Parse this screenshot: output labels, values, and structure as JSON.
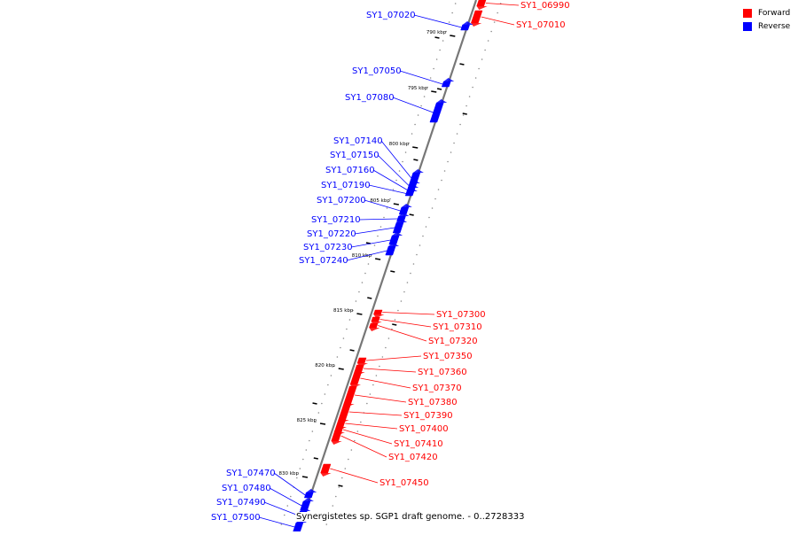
{
  "colors": {
    "forward": "#ff0000",
    "reverse": "#0000ff",
    "axis": "#777777"
  },
  "legend": {
    "forward_label": "Forward",
    "reverse_label": "Reverse"
  },
  "caption": "Synergistetes sp. SGP1 draft genome. - 0..2728333",
  "axis": {
    "ticks": [
      {
        "label": "790 kbp",
        "kbp": 790
      },
      {
        "label": "795 kbp",
        "kbp": 795
      },
      {
        "label": "800 kbp",
        "kbp": 800
      },
      {
        "label": "805 kbp",
        "kbp": 805
      },
      {
        "label": "810 kbp",
        "kbp": 810
      },
      {
        "label": "815 kbp",
        "kbp": 815
      },
      {
        "label": "820 kbp",
        "kbp": 820
      },
      {
        "label": "825 kbp",
        "kbp": 825
      },
      {
        "label": "830 kbp",
        "kbp": 830
      }
    ]
  },
  "genes": [
    {
      "label": "SY1_06990",
      "strand": "forward"
    },
    {
      "label": "SY1_07010",
      "strand": "forward"
    },
    {
      "label": "SY1_07020",
      "strand": "reverse"
    },
    {
      "label": "SY1_07050",
      "strand": "reverse"
    },
    {
      "label": "SY1_07080",
      "strand": "reverse"
    },
    {
      "label": "SY1_07140",
      "strand": "reverse"
    },
    {
      "label": "SY1_07150",
      "strand": "reverse"
    },
    {
      "label": "SY1_07160",
      "strand": "reverse"
    },
    {
      "label": "SY1_07190",
      "strand": "reverse"
    },
    {
      "label": "SY1_07200",
      "strand": "reverse"
    },
    {
      "label": "SY1_07210",
      "strand": "reverse"
    },
    {
      "label": "SY1_07220",
      "strand": "reverse"
    },
    {
      "label": "SY1_07230",
      "strand": "reverse"
    },
    {
      "label": "SY1_07240",
      "strand": "reverse"
    },
    {
      "label": "SY1_07300",
      "strand": "forward"
    },
    {
      "label": "SY1_07310",
      "strand": "forward"
    },
    {
      "label": "SY1_07320",
      "strand": "forward"
    },
    {
      "label": "SY1_07350",
      "strand": "forward"
    },
    {
      "label": "SY1_07360",
      "strand": "forward"
    },
    {
      "label": "SY1_07370",
      "strand": "forward"
    },
    {
      "label": "SY1_07380",
      "strand": "forward"
    },
    {
      "label": "SY1_07390",
      "strand": "forward"
    },
    {
      "label": "SY1_07400",
      "strand": "forward"
    },
    {
      "label": "SY1_07410",
      "strand": "forward"
    },
    {
      "label": "SY1_07420",
      "strand": "forward"
    },
    {
      "label": "SY1_07450",
      "strand": "forward"
    },
    {
      "label": "SY1_07470",
      "strand": "reverse"
    },
    {
      "label": "SY1_07480",
      "strand": "reverse"
    },
    {
      "label": "SY1_07490",
      "strand": "reverse"
    },
    {
      "label": "SY1_07500",
      "strand": "reverse"
    }
  ]
}
